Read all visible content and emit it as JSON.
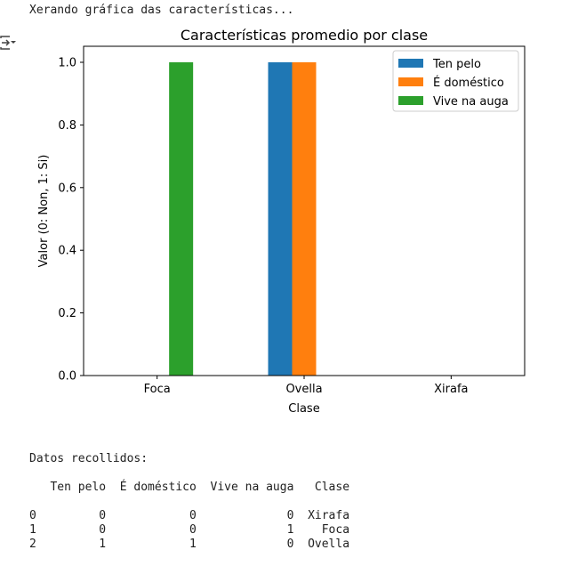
{
  "output": {
    "status_line": "Xerando gráfica das características...",
    "table_title": "Datos recollidos:",
    "table_header": "   Ten pelo  É doméstico  Vive na auga   Clase",
    "table_rows": [
      "0         0            0             0  Xirafa",
      "1         0            0             1    Foca",
      "2         1            1             0  Ovella"
    ]
  },
  "colors": {
    "Ten pelo": "#1f77b4",
    "É doméstico": "#ff7f0e",
    "Vive na auga": "#2ca02c"
  },
  "chart_data": {
    "type": "bar",
    "title": "Características promedio por clase",
    "xlabel": "Clase",
    "ylabel": "Valor (0: Non, 1: Si)",
    "categories": [
      "Foca",
      "Ovella",
      "Xirafa"
    ],
    "series": [
      {
        "name": "Ten pelo",
        "values": [
          0,
          1,
          0
        ]
      },
      {
        "name": "É doméstico",
        "values": [
          0,
          1,
          0
        ]
      },
      {
        "name": "Vive na auga",
        "values": [
          1,
          0,
          0
        ]
      }
    ],
    "yticks": [
      "0.0",
      "0.2",
      "0.4",
      "0.6",
      "0.8",
      "1.0"
    ],
    "ylim": [
      0,
      1.05
    ],
    "grid": false,
    "legend_position": "upper right"
  }
}
